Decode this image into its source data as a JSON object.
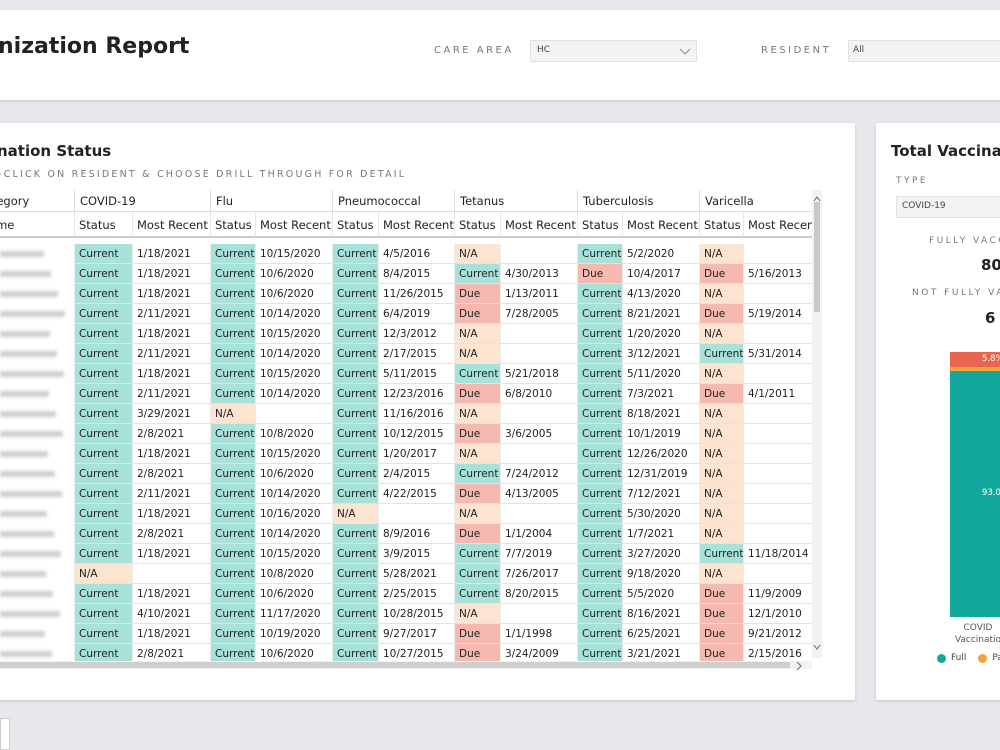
{
  "header": {
    "title": "nization Report",
    "filters": [
      {
        "label": "CARE AREA",
        "value": "HC"
      },
      {
        "label": "RESIDENT",
        "value": "All"
      }
    ]
  },
  "status_table": {
    "title": "nation Status",
    "subtitle": "-CLICK ON RESIDENT & CHOOSE DRILL THROUGH FOR DETAIL",
    "status_colors": {
      "Current": "#a7e2da",
      "Due": "#f5b9b0",
      "N/A": "#fce4d0"
    },
    "group_headers": [
      "e Category",
      "COVID-19",
      "Flu",
      "Pneumococcal",
      "Tetanus",
      "Tuberculosis",
      "Varicella"
    ],
    "column_headers": [
      "nt Name",
      "Status",
      "Most Recent",
      "Status",
      "Most Recent",
      "Status",
      "Most Recent",
      "Status",
      "Most Recent",
      "Status",
      "Most Recent",
      "Status",
      "Most Recent"
    ],
    "rows": [
      [
        "Current",
        "1/18/2021",
        "Current",
        "10/15/2020",
        "Current",
        "4/5/2016",
        "N/A",
        null,
        "Current",
        "5/2/2020",
        "N/A",
        null
      ],
      [
        "Current",
        "1/18/2021",
        "Current",
        "10/6/2020",
        "Current",
        "8/4/2015",
        "Current",
        "4/30/2013",
        "Due",
        "10/4/2017",
        "Due",
        "5/16/2013"
      ],
      [
        "Current",
        "1/18/2021",
        "Current",
        "10/6/2020",
        "Current",
        "11/26/2015",
        "Due",
        "1/13/2011",
        "Current",
        "4/13/2020",
        "N/A",
        null
      ],
      [
        "Current",
        "2/11/2021",
        "Current",
        "10/14/2020",
        "Current",
        "6/4/2019",
        "Due",
        "7/28/2005",
        "Current",
        "8/21/2021",
        "Due",
        "5/19/2014"
      ],
      [
        "Current",
        "1/18/2021",
        "Current",
        "10/15/2020",
        "Current",
        "12/3/2012",
        "N/A",
        null,
        "Current",
        "1/20/2020",
        "N/A",
        null
      ],
      [
        "Current",
        "2/11/2021",
        "Current",
        "10/14/2020",
        "Current",
        "2/17/2015",
        "N/A",
        null,
        "Current",
        "3/12/2021",
        "Current",
        "5/31/2014"
      ],
      [
        "Current",
        "1/18/2021",
        "Current",
        "10/15/2020",
        "Current",
        "5/11/2015",
        "Current",
        "5/21/2018",
        "Current",
        "5/11/2020",
        "N/A",
        null
      ],
      [
        "Current",
        "2/11/2021",
        "Current",
        "10/14/2020",
        "Current",
        "12/23/2016",
        "Due",
        "6/8/2010",
        "Current",
        "7/3/2021",
        "Due",
        "4/1/2011"
      ],
      [
        "Current",
        "3/29/2021",
        "N/A",
        null,
        "Current",
        "11/16/2016",
        "N/A",
        null,
        "Current",
        "8/18/2021",
        "N/A",
        null
      ],
      [
        "Current",
        "2/8/2021",
        "Current",
        "10/8/2020",
        "Current",
        "10/12/2015",
        "Due",
        "3/6/2005",
        "Current",
        "10/1/2019",
        "N/A",
        null
      ],
      [
        "Current",
        "1/18/2021",
        "Current",
        "10/15/2020",
        "Current",
        "1/20/2017",
        "N/A",
        null,
        "Current",
        "12/26/2020",
        "N/A",
        null
      ],
      [
        "Current",
        "2/8/2021",
        "Current",
        "10/6/2020",
        "Current",
        "2/4/2015",
        "Current",
        "7/24/2012",
        "Current",
        "12/31/2019",
        "N/A",
        null
      ],
      [
        "Current",
        "2/11/2021",
        "Current",
        "10/14/2020",
        "Current",
        "4/22/2015",
        "Due",
        "4/13/2005",
        "Current",
        "7/12/2021",
        "N/A",
        null
      ],
      [
        "Current",
        "1/18/2021",
        "Current",
        "10/16/2020",
        "N/A",
        null,
        "N/A",
        null,
        "Current",
        "5/30/2020",
        "N/A",
        null
      ],
      [
        "Current",
        "2/8/2021",
        "Current",
        "10/14/2020",
        "Current",
        "8/9/2016",
        "Due",
        "1/1/2004",
        "Current",
        "1/7/2021",
        "N/A",
        null
      ],
      [
        "Current",
        "1/18/2021",
        "Current",
        "10/15/2020",
        "Current",
        "3/9/2015",
        "Current",
        "7/7/2019",
        "Current",
        "3/27/2020",
        "Current",
        "11/18/2014"
      ],
      [
        "N/A",
        null,
        "Current",
        "10/8/2020",
        "Current",
        "5/28/2021",
        "Current",
        "7/26/2017",
        "Current",
        "9/18/2020",
        "N/A",
        null
      ],
      [
        "Current",
        "1/18/2021",
        "Current",
        "10/6/2020",
        "Current",
        "2/25/2015",
        "Current",
        "8/20/2015",
        "Current",
        "5/5/2020",
        "Due",
        "11/9/2009"
      ],
      [
        "Current",
        "4/10/2021",
        "Current",
        "11/17/2020",
        "Current",
        "10/28/2015",
        "N/A",
        null,
        "Current",
        "8/16/2021",
        "Due",
        "12/1/2010"
      ],
      [
        "Current",
        "1/18/2021",
        "Current",
        "10/19/2020",
        "Current",
        "9/27/2017",
        "Due",
        "1/1/1998",
        "Current",
        "6/25/2021",
        "Due",
        "9/21/2012"
      ],
      [
        "Current",
        "2/8/2021",
        "Current",
        "10/6/2020",
        "Current",
        "10/27/2015",
        "Due",
        "3/24/2009",
        "Current",
        "3/21/2021",
        "Due",
        "2/15/2016"
      ]
    ]
  },
  "summary": {
    "title": "Total Vaccinate",
    "type_label": "TYPE",
    "type_value": "COVID-19",
    "fully_label": "FULLY VACC",
    "fully_value": 80,
    "not_fully_label": "NOT FULLY VA",
    "not_fully_value": 6,
    "chart_data": {
      "type": "stacked_bar",
      "categories": [
        "COVID Vaccinatio"
      ],
      "ylim": [
        0,
        100
      ],
      "series": [
        {
          "name": "Full",
          "color": "#13a89e",
          "values": [
            93.0
          ],
          "value_labels": [
            "93.0%"
          ]
        },
        {
          "name": "Par",
          "color": "#f2a33a",
          "values": [
            1.2
          ]
        },
        {
          "color": "#e8664e",
          "values": [
            5.8
          ],
          "value_labels": [
            "5.8%"
          ]
        }
      ]
    }
  }
}
